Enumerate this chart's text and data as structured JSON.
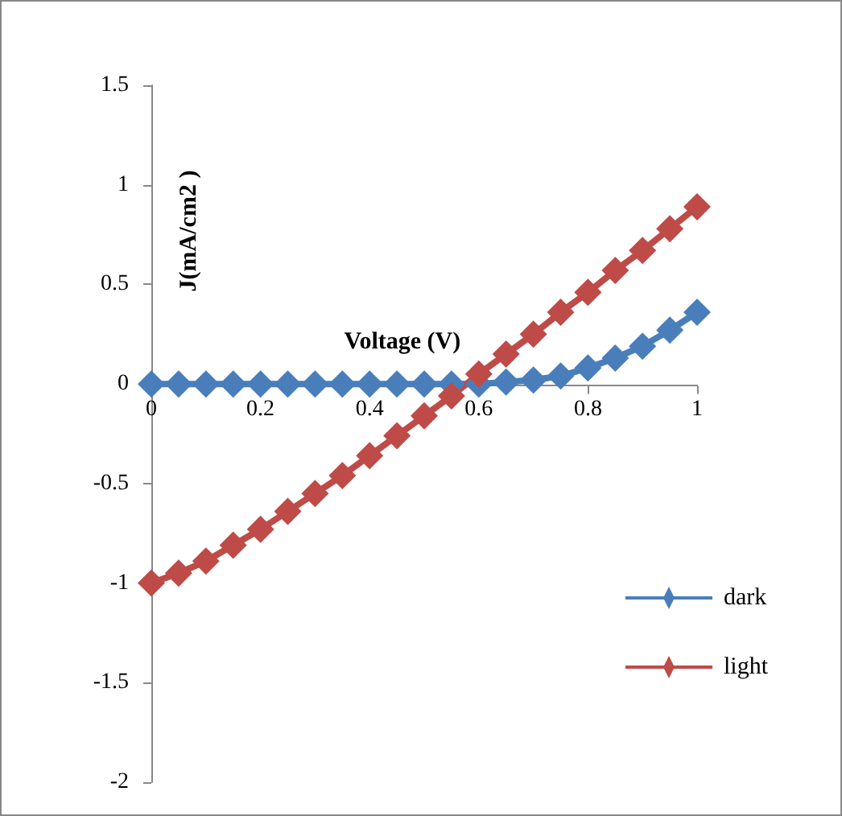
{
  "chart_data": {
    "type": "line",
    "xlabel": "Voltage (V)",
    "ylabel": "J(mA/cm2 )",
    "x": [
      0,
      0.05,
      0.1,
      0.15,
      0.2,
      0.25,
      0.3,
      0.35,
      0.4,
      0.45,
      0.5,
      0.55,
      0.6,
      0.65,
      0.7,
      0.75,
      0.8,
      0.85,
      0.9,
      0.95,
      1
    ],
    "series": [
      {
        "name": "dark",
        "color": "#4a7ebb",
        "values": [
          0,
          0,
          0,
          0,
          0,
          0,
          0,
          0,
          0,
          0,
          0,
          0,
          0,
          0.01,
          0.02,
          0.04,
          0.08,
          0.13,
          0.19,
          0.27,
          0.36
        ]
      },
      {
        "name": "light",
        "color": "#be4b48",
        "values": [
          -1.0,
          -0.95,
          -0.89,
          -0.81,
          -0.73,
          -0.64,
          -0.55,
          -0.46,
          -0.36,
          -0.26,
          -0.16,
          -0.06,
          0.05,
          0.15,
          0.25,
          0.36,
          0.46,
          0.57,
          0.67,
          0.78,
          0.89
        ]
      }
    ],
    "xlim": [
      0,
      1
    ],
    "xticks": [
      0,
      0.2,
      0.4,
      0.6,
      0.8,
      1
    ],
    "ylim": [
      -2,
      1.5
    ],
    "yticks": [
      -2,
      -1.5,
      -1,
      -0.5,
      0,
      0.5,
      1,
      1.5
    ],
    "grid": false,
    "legend": "right",
    "marker": "diamond",
    "line_style": "solid"
  }
}
